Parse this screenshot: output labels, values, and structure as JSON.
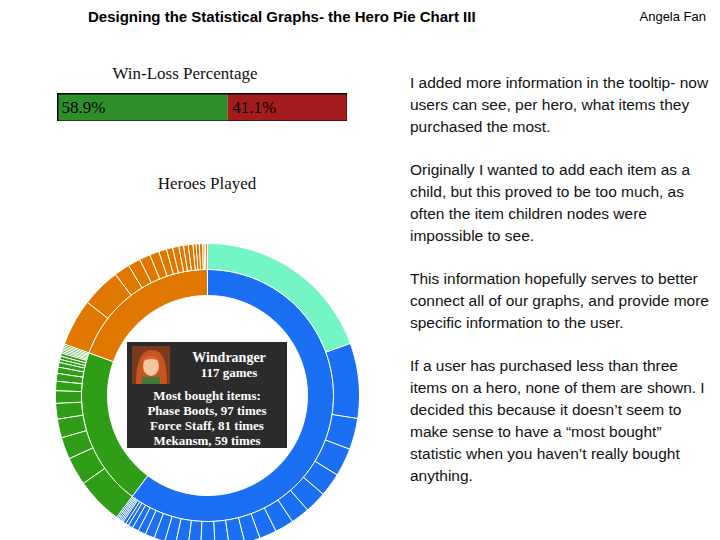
{
  "slide": {
    "title": "Designing the Statistical Graphs- the Hero Pie Chart III",
    "author": "Angela Fan",
    "paragraphs": [
      "I added more information in the tooltip- now users can see, per hero, what items they purchased the most.",
      "Originally I wanted to add each item as a child, but this proved to be too much, as often the item children nodes were impossible to see.",
      "This information hopefully serves to better connect all of our graphs, and provide more specific information to the user.",
      "If a user has purchased less than three items on a hero, none of them are shown. I decided this because it doesn’t seem to make sense to have a “most bought” statistic when you haven’t really bought anything."
    ]
  },
  "chart_data": [
    {
      "type": "bar",
      "title": "Win-Loss Percentage",
      "orientation": "horizontal",
      "stacked": true,
      "values": [
        58.9,
        41.1
      ],
      "value_labels": [
        "58.9%",
        "41.1%"
      ],
      "colors": [
        "#2e8f2a",
        "#a51c1c"
      ],
      "xlim": [
        0,
        100
      ],
      "data_labels": true,
      "tick_labels": false
    },
    {
      "type": "sunburst",
      "title": "Heroes Played",
      "groups": [
        {
          "value": 362,
          "color": "#1a6ff2",
          "children": {
            "values": [
              117,
              48,
              20,
              18,
              15,
              14,
              12,
              12,
              11,
              10,
              10,
              9,
              9,
              8,
              8,
              7,
              7,
              6,
              5,
              4,
              3,
              2,
              2,
              1,
              1,
              1,
              1,
              1
            ],
            "colors": [
              "#73f5c5",
              "#1a6ff2",
              "#1a6ff2",
              "#1a6ff2",
              "#1a6ff2",
              "#1a6ff2",
              "#1a6ff2",
              "#1a6ff2",
              "#1a6ff2",
              "#1a6ff2",
              "#1a6ff2",
              "#1a6ff2",
              "#1a6ff2",
              "#1a6ff2",
              "#1a6ff2",
              "#1a6ff2",
              "#1a6ff2",
              "#1a6ff2",
              "#1a6ff2",
              "#1a6ff2",
              "#1a6ff2",
              "#1a6ff2",
              "#1a6ff2",
              "#1a6ff2",
              "#1a6ff2",
              "#1a6ff2",
              "#1a6ff2",
              "#1a6ff2"
            ]
          }
        },
        {
          "value": 122,
          "color": "#2f9e16",
          "children": {
            "values": [
              30,
              18,
              14,
              12,
              10,
              8,
              6,
              5,
              4,
              3,
              2,
              2,
              2,
              1,
              1,
              1,
              1,
              1,
              1
            ],
            "colors": [
              "#2f9e16",
              "#2f9e16",
              "#2f9e16",
              "#2f9e16",
              "#2f9e16",
              "#2f9e16",
              "#2f9e16",
              "#2f9e16",
              "#2f9e16",
              "#2f9e16",
              "#2f9e16",
              "#2f9e16",
              "#2f9e16",
              "#2f9e16",
              "#2f9e16",
              "#2f9e16",
              "#2f9e16",
              "#2f9e16",
              "#2f9e16"
            ]
          }
        },
        {
          "value": 117,
          "color": "#e07800",
          "children": {
            "values": [
              30,
              25,
              10,
              8,
              7,
              6,
              5,
              4,
              4,
              3,
              3,
              3,
              2,
              2,
              2,
              1,
              1,
              1
            ],
            "colors": [
              "#e07800",
              "#e07800",
              "#e07800",
              "#e07800",
              "#e07800",
              "#e07800",
              "#e07800",
              "#e07800",
              "#e07800",
              "#e07800",
              "#e07800",
              "#e07800",
              "#e07800",
              "#e07800",
              "#e07800",
              "#e07800",
              "#e07800",
              "#e07800"
            ]
          }
        }
      ],
      "tooltip": {
        "hero": "Windranger",
        "games": "117 games",
        "heading": "Most bought items:",
        "items": [
          "Phase Boots, 97 times",
          "Force Staff, 81 times",
          "Mekansm, 59 times"
        ]
      }
    }
  ]
}
